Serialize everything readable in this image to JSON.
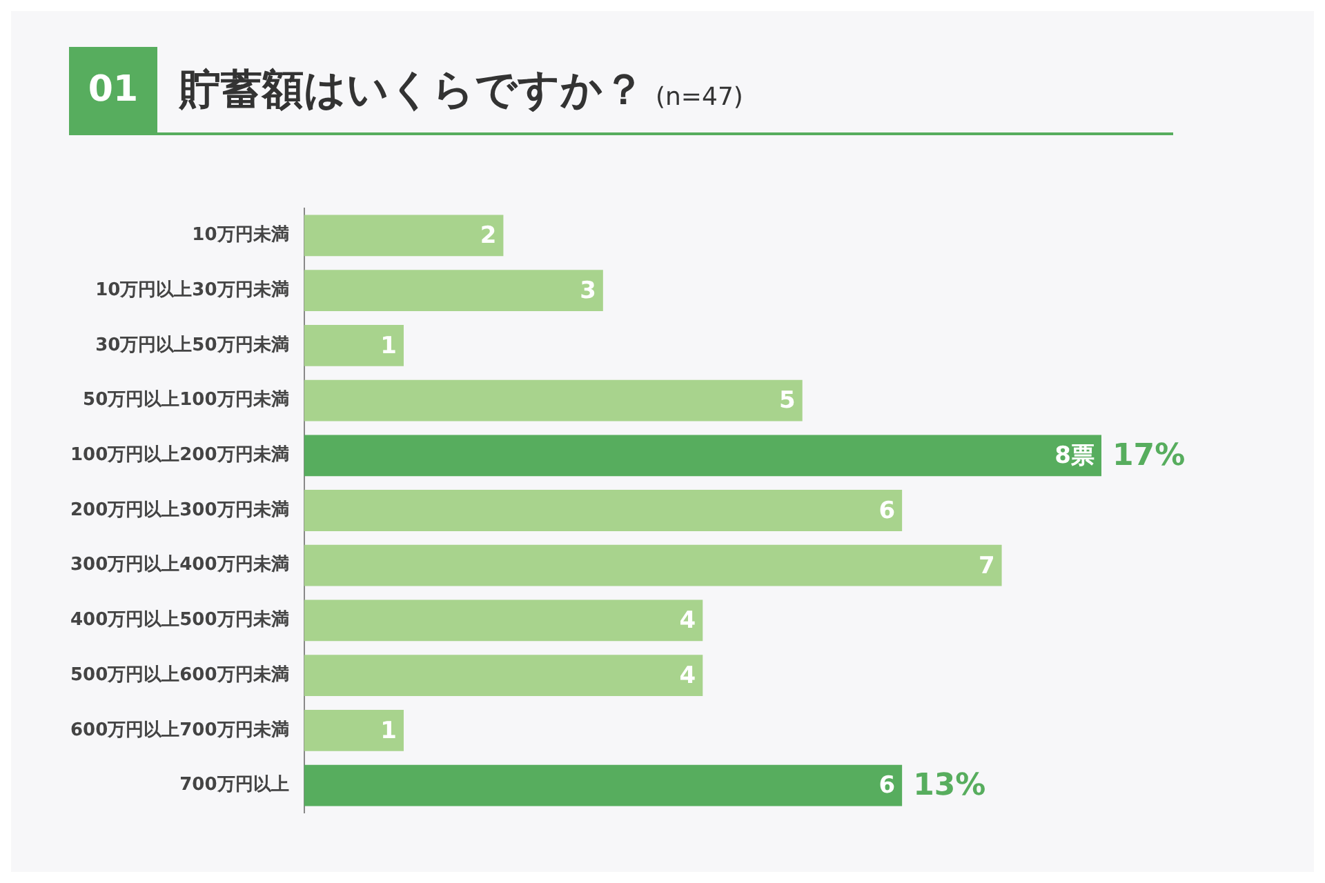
{
  "chart_data": {
    "type": "bar",
    "orientation": "horizontal",
    "title": "貯蓄額はいくらですか？",
    "subtitle": "(n=47)",
    "categories": [
      "10万円未満",
      "10万円以上30万円未満",
      "30万円以上50万円未満",
      "50万円以上100万円未満",
      "100万円以上200万円未満",
      "200万円以上300万円未満",
      "300万円以上400万円未満",
      "400万円以上500万円未満",
      "500万円以上600万円未満",
      "600万円以上700万円未満",
      "700万円以上"
    ],
    "values": [
      2,
      3,
      1,
      5,
      8,
      6,
      7,
      4,
      4,
      1,
      6
    ],
    "colors": [
      "#a8d38d",
      "#a8d38d",
      "#a8d38d",
      "#a8d38d",
      "#57ad5e",
      "#a8d38d",
      "#a8d38d",
      "#a8d38d",
      "#a8d38d",
      "#a8d38d",
      "#57ad5e"
    ],
    "value_labels": [
      "2",
      "3",
      "1",
      "5",
      "8票",
      "6",
      "7",
      "4",
      "4",
      "1",
      "6"
    ],
    "annotations": [
      "01",
      {
        "text": "17%",
        "x": 8,
        "y": "100万円以上200万円未満"
      },
      {
        "text": "13%",
        "x": 6,
        "y": "700万円以上"
      }
    ],
    "grid": false,
    "legend": false
  }
}
